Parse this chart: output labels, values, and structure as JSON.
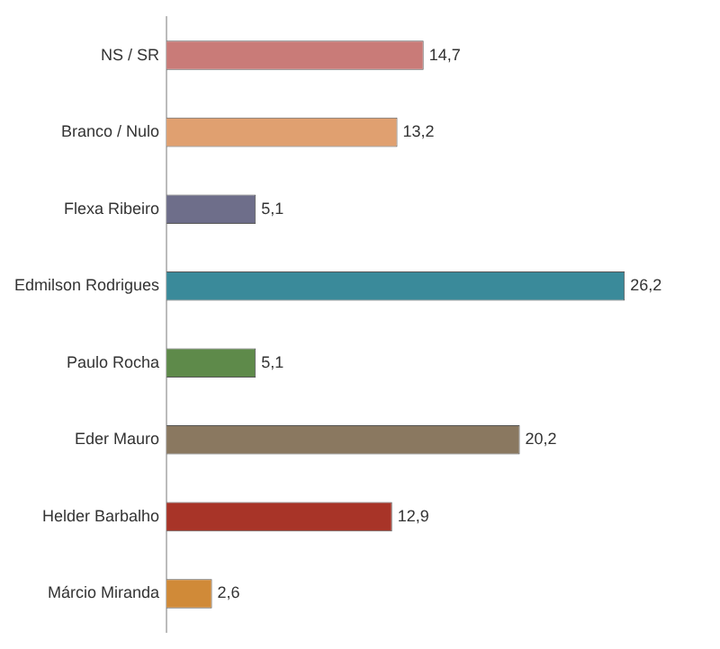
{
  "chart_data": {
    "type": "bar",
    "orientation": "horizontal",
    "legend": false,
    "value_labels": [
      "14,7",
      "13,2",
      "5,1",
      "26,2",
      "5,1",
      "20,2",
      "12,9",
      "2,6"
    ],
    "categories": [
      "NS / SR",
      "Branco / Nulo",
      "Flexa Ribeiro",
      "Edmilson Rodrigues",
      "Paulo Rocha",
      "Eder Mauro",
      "Helder Barbalho",
      "Márcio Miranda"
    ],
    "values": [
      14.7,
      13.2,
      5.1,
      26.2,
      5.1,
      20.2,
      12.9,
      2.6
    ],
    "colors": [
      "#c97b78",
      "#e0a070",
      "#6e6e8a",
      "#3a8a9a",
      "#5e8a4a",
      "#8a7860",
      "#a83428",
      "#d08a38"
    ]
  }
}
